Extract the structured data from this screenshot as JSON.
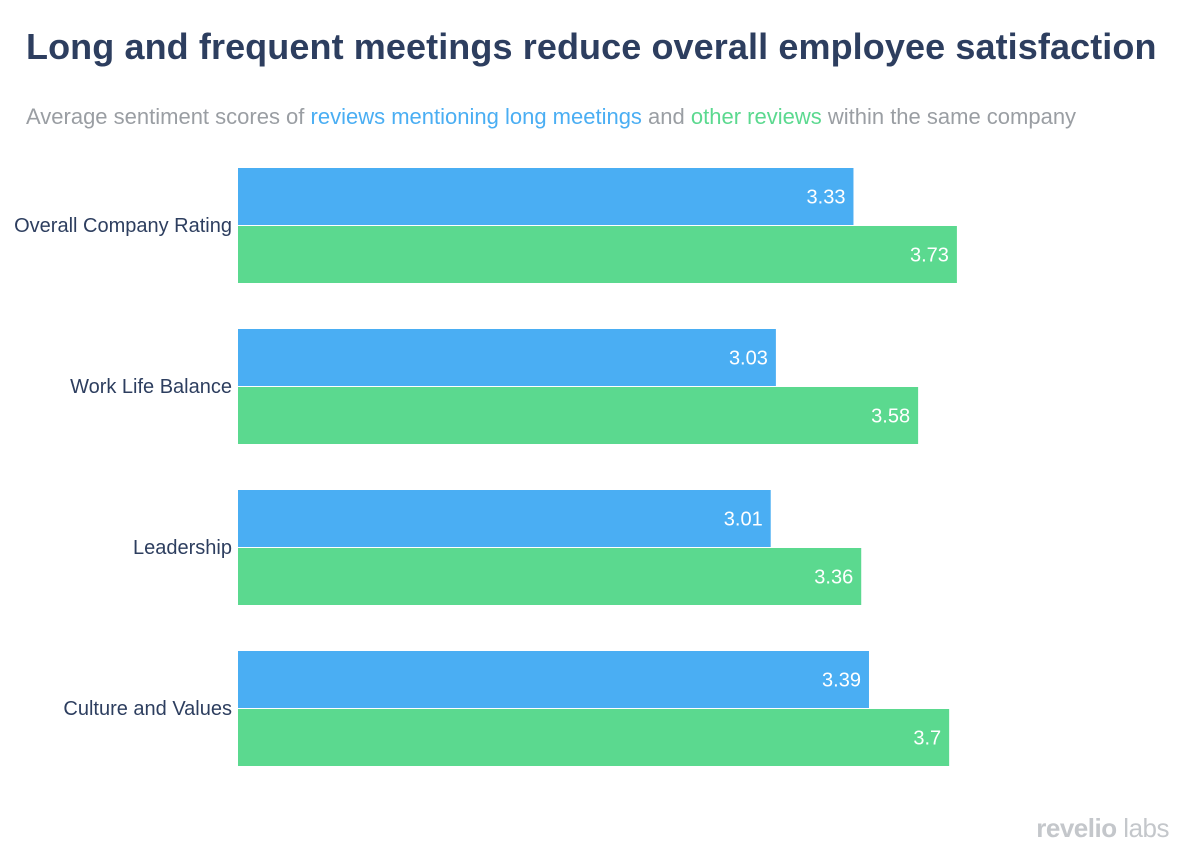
{
  "chart_data": {
    "type": "bar",
    "orientation": "horizontal",
    "title": "Long and frequent meetings reduce overall employee satisfaction",
    "subtitle": {
      "prefix": "Average sentiment scores of ",
      "series1_text": "reviews mentioning long meetings",
      "middle": " and ",
      "series2_text": "other reviews",
      "suffix": " within the same company"
    },
    "categories": [
      "Overall Company Rating",
      "Work Life Balance",
      "Leadership",
      "Culture and Values"
    ],
    "series": [
      {
        "name": "reviews mentioning long meetings",
        "color": "#4aaef3",
        "values": [
          3.33,
          3.03,
          3.01,
          3.39
        ]
      },
      {
        "name": "other reviews",
        "color": "#5bd98f",
        "values": [
          3.73,
          3.58,
          3.36,
          3.7
        ]
      }
    ],
    "xlim": [
      0.95,
      3.75
    ],
    "xlabel": "",
    "ylabel": "",
    "grid": false,
    "legend": "in-subtitle"
  },
  "branding": {
    "part1": "revelio",
    "part2": " labs"
  }
}
